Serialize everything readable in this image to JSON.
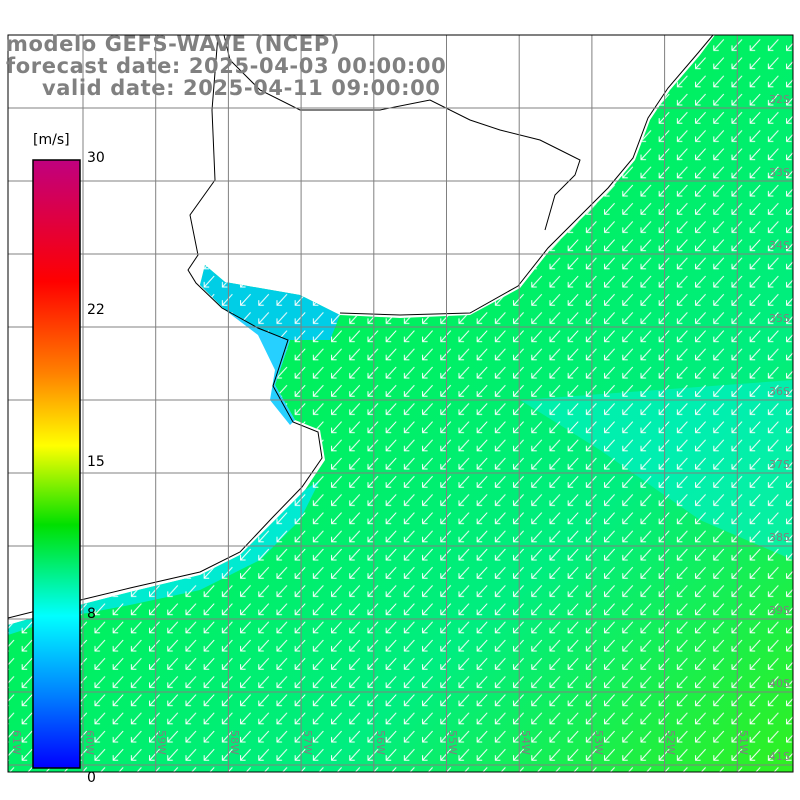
{
  "title": {
    "line1": "modelo GEFS-WAVE (NCEP)",
    "line2": "forecast date: 2025-04-03 00:00:00",
    "line3": "valid date: 2025-04-11 09:00:00"
  },
  "colorbar": {
    "unit": "[m/s]",
    "ticks": [
      "30",
      "22",
      "15",
      "8",
      "0"
    ],
    "colors": [
      "#c0007f",
      "#ff0000",
      "#ff8000",
      "#ffff00",
      "#00e000",
      "#00ffff",
      "#0080ff",
      "#0000ff"
    ]
  },
  "map": {
    "lat_labels": [
      "32S",
      "33S",
      "34S",
      "35S",
      "36S",
      "37S",
      "38S",
      "39S",
      "40S",
      "41S"
    ],
    "lon_labels": [
      "61W",
      "60W",
      "59W",
      "58W",
      "57W",
      "56W",
      "55W",
      "54W",
      "53W",
      "52W",
      "51W"
    ],
    "arrow_direction": "south-west"
  }
}
